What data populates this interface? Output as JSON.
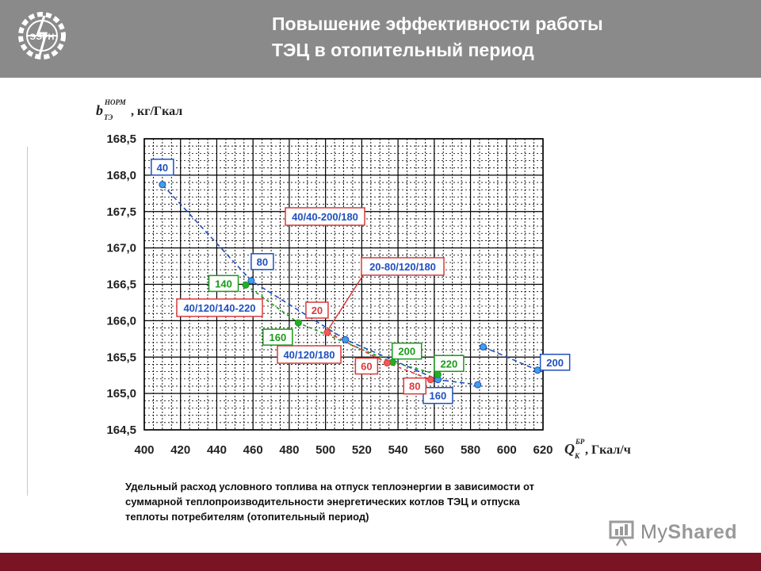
{
  "header": {
    "title_line1": "Повышение эффективности работы",
    "title_line2": "ТЭЦ в отопительный период",
    "background": "#8a8a8a"
  },
  "logo": {
    "text": "ЭЭРН"
  },
  "chart_data": {
    "type": "scatter",
    "title": "",
    "ylabel_main": "b",
    "ylabel_sub": "ТЭ",
    "ylabel_sup": "НОРМ",
    "ylabel_unit": ", кг/Гкал",
    "xlabel_main": "Q",
    "xlabel_sub": "К",
    "xlabel_sup": "БР",
    "xlabel_unit": ", Гкал/ч",
    "xlim": [
      400,
      620
    ],
    "ylim": [
      164.5,
      168.5
    ],
    "x_ticks": [
      "400",
      "420",
      "440",
      "460",
      "480",
      "500",
      "520",
      "540",
      "560",
      "580",
      "600",
      "620"
    ],
    "y_ticks": [
      "164,5",
      "165,0",
      "165,5",
      "166,0",
      "166,5",
      "167,0",
      "167,5",
      "168,0",
      "168,5"
    ],
    "grid": true,
    "series": [
      {
        "color": "#1f4fbf",
        "points": [
          {
            "x": 410,
            "y": 167.87,
            "label": "40"
          },
          {
            "x": 459,
            "y": 166.55,
            "label": "80"
          },
          {
            "x": 511,
            "y": 165.74
          },
          {
            "x": 562,
            "y": 165.19,
            "label": "160"
          },
          {
            "x": 584,
            "y": 165.12
          },
          {
            "x": 587,
            "y": 165.64
          },
          {
            "x": 617,
            "y": 165.32,
            "label": "200"
          }
        ]
      },
      {
        "color": "#1a9a1a",
        "points": [
          {
            "x": 456,
            "y": 166.49,
            "label": "140"
          },
          {
            "x": 485,
            "y": 165.97,
            "label": "160"
          },
          {
            "x": 537,
            "y": 165.43,
            "label": "200"
          },
          {
            "x": 562,
            "y": 165.26,
            "label": "220"
          }
        ]
      },
      {
        "color": "#d83a3a",
        "points": [
          {
            "x": 501,
            "y": 165.84,
            "label": "20"
          },
          {
            "x": 534,
            "y": 165.42,
            "label": "60"
          },
          {
            "x": 558,
            "y": 165.19,
            "label": "80"
          }
        ]
      }
    ],
    "annotations": [
      {
        "text": "40/40-200/180"
      },
      {
        "text": "20-80/120/180"
      },
      {
        "text": "40/120/140-220"
      },
      {
        "text": "40/120/180"
      }
    ]
  },
  "caption": {
    "line1": "Удельный расход условного топлива на отпуск теплоэнергии в зависимости от",
    "line2": "суммарной теплопроизводительности энергетических котлов ТЭЦ и отпуска",
    "line3": "теплоты потребителям (отопительный период)"
  },
  "footer": {
    "color": "#7a1424"
  },
  "watermark": {
    "text_my": "My",
    "text_shared": "Shared"
  }
}
